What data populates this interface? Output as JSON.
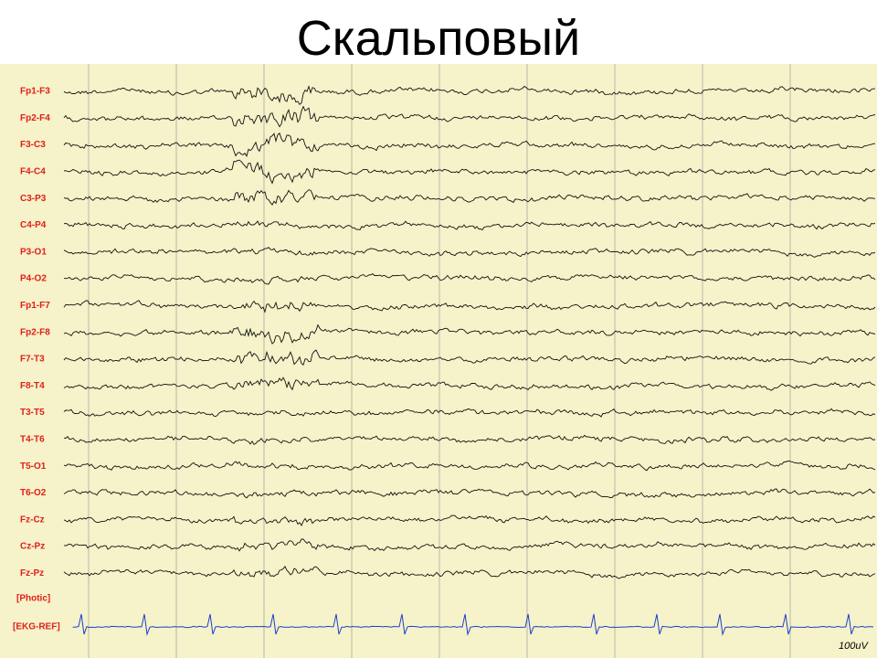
{
  "header": {
    "title": "Скальповый"
  },
  "eeg": {
    "channels": [
      "Fp1-F3",
      "Fp2-F4",
      "F3-C3",
      "F4-C4",
      "C3-P3",
      "C4-P4",
      "P3-O1",
      "P4-O2",
      "Fp1-F7",
      "Fp2-F8",
      "F7-T3",
      "F8-T4",
      "T3-T5",
      "T4-T6",
      "T5-O1",
      "T6-O2",
      "Fz-Cz",
      "Cz-Pz",
      "Fz-Pz"
    ],
    "photic_label": "[Photic]",
    "ekg_label": "[EKG-REF]",
    "scale_label": "100uV"
  }
}
